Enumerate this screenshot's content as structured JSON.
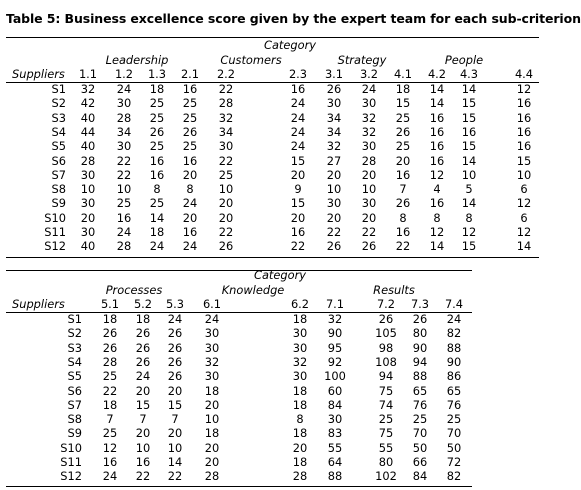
{
  "title": "Table 5: Business excellence score given by the expert team for each sub-criterion",
  "table1": {
    "category_label": "Category",
    "groups": [
      "Leadership",
      "Customers",
      "Strategy",
      "People"
    ],
    "suppliers_label": "Suppliers",
    "columns": [
      "1.1",
      "1.2",
      "1.3",
      "2.1",
      "2.2",
      "2.3",
      "3.1",
      "3.2",
      "4.1",
      "4.2",
      "4.3",
      "4.4"
    ],
    "rows": [
      {
        "supplier": "S1",
        "values": [
          "32",
          "24",
          "18",
          "16",
          "22",
          "16",
          "26",
          "24",
          "18",
          "14",
          "14",
          "12"
        ]
      },
      {
        "supplier": "S2",
        "values": [
          "42",
          "30",
          "25",
          "25",
          "28",
          "24",
          "30",
          "30",
          "15",
          "14",
          "15",
          "16"
        ]
      },
      {
        "supplier": "S3",
        "values": [
          "40",
          "28",
          "25",
          "25",
          "32",
          "24",
          "34",
          "32",
          "25",
          "16",
          "15",
          "16"
        ]
      },
      {
        "supplier": "S4",
        "values": [
          "44",
          "34",
          "26",
          "26",
          "34",
          "24",
          "34",
          "32",
          "26",
          "16",
          "16",
          "16"
        ]
      },
      {
        "supplier": "S5",
        "values": [
          "40",
          "30",
          "25",
          "25",
          "30",
          "24",
          "32",
          "30",
          "25",
          "16",
          "15",
          "16"
        ]
      },
      {
        "supplier": "S6",
        "values": [
          "28",
          "22",
          "16",
          "16",
          "22",
          "15",
          "27",
          "28",
          "20",
          "16",
          "14",
          "15"
        ]
      },
      {
        "supplier": "S7",
        "values": [
          "30",
          "22",
          "16",
          "20",
          "25",
          "20",
          "20",
          "20",
          "16",
          "12",
          "10",
          "10"
        ]
      },
      {
        "supplier": "S8",
        "values": [
          "10",
          "10",
          "8",
          "8",
          "10",
          "9",
          "10",
          "10",
          "7",
          "4",
          "5",
          "6"
        ]
      },
      {
        "supplier": "S9",
        "values": [
          "30",
          "25",
          "25",
          "24",
          "20",
          "15",
          "30",
          "30",
          "26",
          "16",
          "14",
          "12"
        ]
      },
      {
        "supplier": "S10",
        "values": [
          "20",
          "16",
          "14",
          "20",
          "20",
          "20",
          "20",
          "20",
          "8",
          "8",
          "8",
          "6"
        ]
      },
      {
        "supplier": "S11",
        "values": [
          "30",
          "24",
          "18",
          "16",
          "22",
          "16",
          "22",
          "22",
          "16",
          "12",
          "12",
          "12"
        ]
      },
      {
        "supplier": "S12",
        "values": [
          "40",
          "28",
          "24",
          "24",
          "26",
          "22",
          "26",
          "26",
          "22",
          "14",
          "15",
          "14"
        ]
      }
    ]
  },
  "table2": {
    "category_label": "Category",
    "groups": [
      "Processes",
      "Knowledge",
      "Results"
    ],
    "suppliers_label": "Suppliers",
    "columns": [
      "5.1",
      "5.2",
      "5.3",
      "6.1",
      "6.2",
      "7.1",
      "7.2",
      "7.3",
      "7.4"
    ],
    "rows": [
      {
        "supplier": "S1",
        "values": [
          "18",
          "18",
          "24",
          "24",
          "18",
          "32",
          "26",
          "26",
          "24"
        ]
      },
      {
        "supplier": "S2",
        "values": [
          "26",
          "26",
          "26",
          "30",
          "30",
          "90",
          "105",
          "80",
          "82"
        ]
      },
      {
        "supplier": "S3",
        "values": [
          "26",
          "26",
          "26",
          "30",
          "30",
          "95",
          "98",
          "90",
          "88"
        ]
      },
      {
        "supplier": "S4",
        "values": [
          "28",
          "26",
          "26",
          "32",
          "32",
          "92",
          "108",
          "94",
          "90"
        ]
      },
      {
        "supplier": "S5",
        "values": [
          "25",
          "24",
          "26",
          "30",
          "30",
          "100",
          "94",
          "88",
          "86"
        ]
      },
      {
        "supplier": "S6",
        "values": [
          "22",
          "20",
          "20",
          "18",
          "18",
          "60",
          "75",
          "65",
          "65"
        ]
      },
      {
        "supplier": "S7",
        "values": [
          "18",
          "15",
          "15",
          "20",
          "18",
          "84",
          "74",
          "76",
          "76"
        ]
      },
      {
        "supplier": "S8",
        "values": [
          "7",
          "7",
          "7",
          "10",
          "8",
          "30",
          "25",
          "25",
          "25"
        ]
      },
      {
        "supplier": "S9",
        "values": [
          "25",
          "20",
          "20",
          "18",
          "18",
          "83",
          "75",
          "70",
          "70"
        ]
      },
      {
        "supplier": "S10",
        "values": [
          "12",
          "10",
          "10",
          "20",
          "20",
          "55",
          "55",
          "50",
          "50"
        ]
      },
      {
        "supplier": "S11",
        "values": [
          "16",
          "16",
          "14",
          "20",
          "18",
          "64",
          "80",
          "66",
          "72"
        ]
      },
      {
        "supplier": "S12",
        "values": [
          "24",
          "22",
          "22",
          "28",
          "28",
          "88",
          "102",
          "84",
          "82"
        ]
      }
    ]
  }
}
